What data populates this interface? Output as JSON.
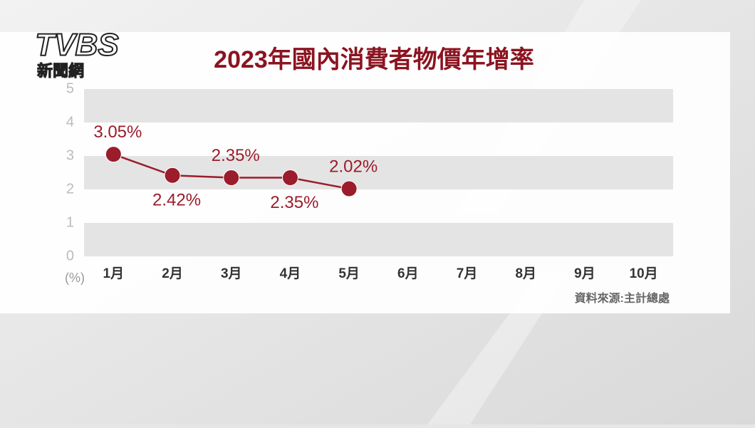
{
  "logo": {
    "name": "TVBS",
    "subtitle": "新聞網"
  },
  "chart_data": {
    "type": "line",
    "title": "2023年國內消費者物價年增率",
    "categories": [
      "1月",
      "2月",
      "3月",
      "4月",
      "5月",
      "6月",
      "7月",
      "8月",
      "9月",
      "10月"
    ],
    "values": [
      3.05,
      2.42,
      2.35,
      2.35,
      2.02,
      null,
      null,
      null,
      null,
      null
    ],
    "value_labels": [
      "3.05%",
      "2.42%",
      "2.35%",
      "2.35%",
      "2.02%",
      null,
      null,
      null,
      null,
      null
    ],
    "color": "#9b1c2a",
    "y_label": "(%)",
    "ylim": [
      0,
      5
    ],
    "yticks": [
      0,
      1,
      2,
      3,
      4,
      5
    ],
    "source": "資料來源:主計總處"
  }
}
